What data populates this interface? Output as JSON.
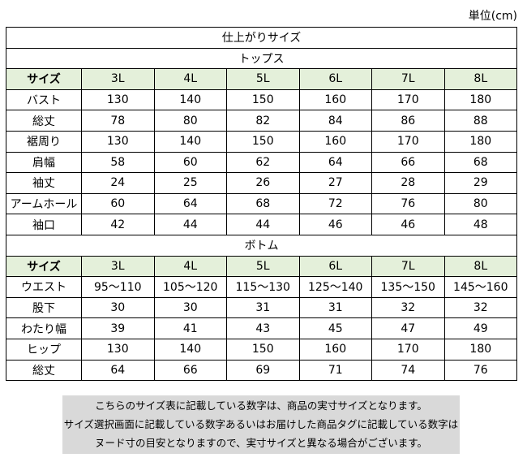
{
  "unit_label": "単位(cm)",
  "title": "仕上がりサイズ",
  "tops": {
    "section_label": "トップス",
    "size_header": "サイズ",
    "sizes": [
      "3L",
      "4L",
      "5L",
      "6L",
      "7L",
      "8L"
    ],
    "rows": [
      {
        "label": "バスト",
        "values": [
          "130",
          "140",
          "150",
          "160",
          "170",
          "180"
        ]
      },
      {
        "label": "総丈",
        "values": [
          "78",
          "80",
          "82",
          "84",
          "86",
          "88"
        ]
      },
      {
        "label": "裾周り",
        "values": [
          "130",
          "140",
          "150",
          "160",
          "170",
          "180"
        ]
      },
      {
        "label": "肩幅",
        "values": [
          "58",
          "60",
          "62",
          "64",
          "66",
          "68"
        ]
      },
      {
        "label": "袖丈",
        "values": [
          "24",
          "25",
          "26",
          "27",
          "28",
          "29"
        ]
      },
      {
        "label": "アームホール",
        "values": [
          "60",
          "64",
          "68",
          "72",
          "76",
          "80"
        ]
      },
      {
        "label": "袖口",
        "values": [
          "42",
          "44",
          "44",
          "46",
          "46",
          "48"
        ]
      }
    ]
  },
  "bottoms": {
    "section_label": "ボトム",
    "size_header": "サイズ",
    "sizes": [
      "3L",
      "4L",
      "5L",
      "6L",
      "7L",
      "8L"
    ],
    "rows": [
      {
        "label": "ウエスト",
        "values": [
          "95～110",
          "105～120",
          "115～130",
          "125～140",
          "135～150",
          "145～160"
        ]
      },
      {
        "label": "股下",
        "values": [
          "30",
          "30",
          "31",
          "31",
          "32",
          "32"
        ]
      },
      {
        "label": "わたり幅",
        "values": [
          "39",
          "41",
          "43",
          "45",
          "47",
          "49"
        ]
      },
      {
        "label": "ヒップ",
        "values": [
          "130",
          "140",
          "150",
          "160",
          "170",
          "180"
        ]
      },
      {
        "label": "総丈",
        "values": [
          "64",
          "66",
          "69",
          "71",
          "74",
          "76"
        ]
      }
    ]
  },
  "note": {
    "lines": [
      "こちらのサイズ表に記載している数字は、商品の実寸サイズとなります。",
      "サイズ選択画面に記載している数字あるいはお届けした商品タグに記載している数字は",
      "ヌード寸の目安となりますので、実寸サイズと異なる場合がございます。"
    ]
  }
}
